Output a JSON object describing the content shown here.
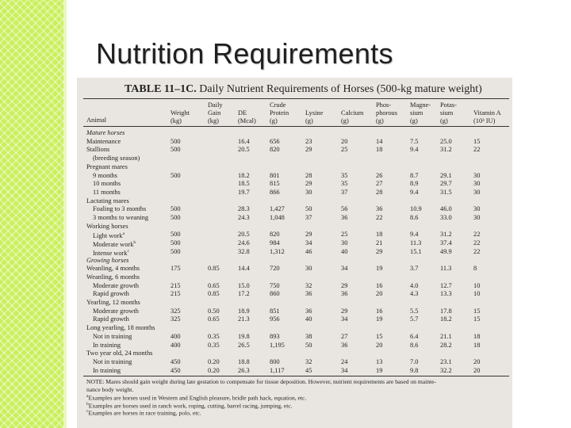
{
  "slide_title": "Nutrition Requirements",
  "table": {
    "label": "TABLE 11–1C.",
    "caption": "Daily Nutrient Requirements of Horses (500-kg mature weight)",
    "headers": {
      "animal": "Animal",
      "weight": [
        "",
        "Weight",
        "(kg)"
      ],
      "gain": [
        "Daily",
        "Gain",
        "(kg)"
      ],
      "de": [
        "",
        "DE",
        "(Mcal)"
      ],
      "protein": [
        "Crude",
        "Protein",
        "(g)"
      ],
      "lysine": [
        "",
        "Lysine",
        "(g)"
      ],
      "calcium": [
        "",
        "Calcium",
        "(g)"
      ],
      "phosphorous": [
        "Phos-",
        "phorous",
        "(g)"
      ],
      "magnesium": [
        "Magne-",
        "sium",
        "(g)"
      ],
      "potassium": [
        "Potas-",
        "sium",
        "(g)"
      ],
      "vitamin_a": [
        "",
        "Vitamin A",
        "(10³ IU)"
      ]
    },
    "rows": [
      {
        "type": "section",
        "name": "Mature horses"
      },
      {
        "type": "data",
        "indent": false,
        "name": "Maintenance",
        "v": [
          "500",
          "",
          "16.4",
          "656",
          "23",
          "20",
          "14",
          "7.5",
          "25.0",
          "15"
        ]
      },
      {
        "type": "data",
        "indent": false,
        "name": "Stallions",
        "v": [
          "500",
          "",
          "20.5",
          "820",
          "29",
          "25",
          "18",
          "9.4",
          "31.2",
          "22"
        ]
      },
      {
        "type": "label",
        "indent": true,
        "name": "(breeding season)"
      },
      {
        "type": "label",
        "indent": false,
        "name": "Pregnant mares"
      },
      {
        "type": "data",
        "indent": true,
        "name": "9 months",
        "v": [
          "500",
          "",
          "18.2",
          "801",
          "28",
          "35",
          "26",
          "8.7",
          "29.1",
          "30"
        ]
      },
      {
        "type": "data",
        "indent": true,
        "name": "10 months",
        "v": [
          "",
          "",
          "18.5",
          "815",
          "29",
          "35",
          "27",
          "8.9",
          "29.7",
          "30"
        ]
      },
      {
        "type": "data",
        "indent": true,
        "name": "11 months",
        "v": [
          "",
          "",
          "19.7",
          "866",
          "30",
          "37",
          "28",
          "9.4",
          "31.5",
          "30"
        ]
      },
      {
        "type": "label",
        "indent": false,
        "name": "Lactating mares"
      },
      {
        "type": "data",
        "indent": true,
        "name": "Foaling to 3 months",
        "v": [
          "500",
          "",
          "28.3",
          "1,427",
          "50",
          "56",
          "36",
          "10.9",
          "46.0",
          "30"
        ]
      },
      {
        "type": "data",
        "indent": true,
        "name": "3 months to weaning",
        "v": [
          "500",
          "",
          "24.3",
          "1,048",
          "37",
          "36",
          "22",
          "8.6",
          "33.0",
          "30"
        ]
      },
      {
        "type": "label",
        "indent": false,
        "name": "Working horses"
      },
      {
        "type": "data",
        "indent": true,
        "name": "Light work",
        "sup": "a",
        "v": [
          "500",
          "",
          "20.5",
          "820",
          "29",
          "25",
          "18",
          "9.4",
          "31.2",
          "22"
        ]
      },
      {
        "type": "data",
        "indent": true,
        "name": "Moderate work",
        "sup": "b",
        "v": [
          "500",
          "",
          "24.6",
          "984",
          "34",
          "30",
          "21",
          "11.3",
          "37.4",
          "22"
        ]
      },
      {
        "type": "data",
        "indent": true,
        "name": "Intense work",
        "sup": "c",
        "v": [
          "500",
          "",
          "32.8",
          "1,312",
          "46",
          "40",
          "29",
          "15.1",
          "49.9",
          "22"
        ]
      },
      {
        "type": "section",
        "name": "Growing horses"
      },
      {
        "type": "data",
        "indent": false,
        "name": "Weanling, 4 months",
        "v": [
          "175",
          "0.85",
          "14.4",
          "720",
          "30",
          "34",
          "19",
          "3.7",
          "11.3",
          "8"
        ]
      },
      {
        "type": "label",
        "indent": false,
        "name": "Weanling, 6 months"
      },
      {
        "type": "data",
        "indent": true,
        "name": "Moderate growth",
        "v": [
          "215",
          "0.65",
          "15.0",
          "750",
          "32",
          "29",
          "16",
          "4.0",
          "12.7",
          "10"
        ]
      },
      {
        "type": "data",
        "indent": true,
        "name": "Rapid growth",
        "v": [
          "215",
          "0.85",
          "17.2",
          "860",
          "36",
          "36",
          "20",
          "4.3",
          "13.3",
          "10"
        ]
      },
      {
        "type": "label",
        "indent": false,
        "name": "Yearling, 12 months"
      },
      {
        "type": "data",
        "indent": true,
        "name": "Moderate growth",
        "v": [
          "325",
          "0.50",
          "18.9",
          "851",
          "36",
          "29",
          "16",
          "5.5",
          "17.8",
          "15"
        ]
      },
      {
        "type": "data",
        "indent": true,
        "name": "Rapid growth",
        "v": [
          "325",
          "0.65",
          "21.3",
          "956",
          "40",
          "34",
          "19",
          "5.7",
          "18.2",
          "15"
        ]
      },
      {
        "type": "label",
        "indent": false,
        "name": "Long yearling, 18 months"
      },
      {
        "type": "data",
        "indent": true,
        "name": "Not in training",
        "v": [
          "400",
          "0.35",
          "19.8",
          "893",
          "38",
          "27",
          "15",
          "6.4",
          "21.1",
          "18"
        ]
      },
      {
        "type": "data",
        "indent": true,
        "name": "In training",
        "v": [
          "400",
          "0.35",
          "26.5",
          "1,195",
          "50",
          "36",
          "20",
          "8.6",
          "28.2",
          "18"
        ]
      },
      {
        "type": "label",
        "indent": false,
        "name": "Two year old, 24 months"
      },
      {
        "type": "data",
        "indent": true,
        "name": "Not in training",
        "v": [
          "450",
          "0.20",
          "18.8",
          "800",
          "32",
          "24",
          "13",
          "7.0",
          "23.1",
          "20"
        ]
      },
      {
        "type": "data",
        "indent": true,
        "name": "In training",
        "v": [
          "450",
          "0.20",
          "26.3",
          "1,117",
          "45",
          "34",
          "19",
          "9.8",
          "32.2",
          "20"
        ]
      }
    ],
    "notes": [
      {
        "sup": "",
        "text": "NOTE: Mares should gain weight during late gestation to compensate for tissue deposition. However, nutrient requirements are based on mainte-"
      },
      {
        "sup": "",
        "text": "nance body weight."
      },
      {
        "sup": "a",
        "text": "Examples are horses used in Western and English pleasure, bridle path hack, equation, etc."
      },
      {
        "sup": "b",
        "text": "Examples are horses used in ranch work, roping, cutting, barrel racing, jumping, etc."
      },
      {
        "sup": "c",
        "text": "Examples are horses in race training, polo, etc."
      }
    ]
  },
  "colors": {
    "accent_stripe": "#c9ef5b",
    "document_bg": "#e9e6e1"
  }
}
